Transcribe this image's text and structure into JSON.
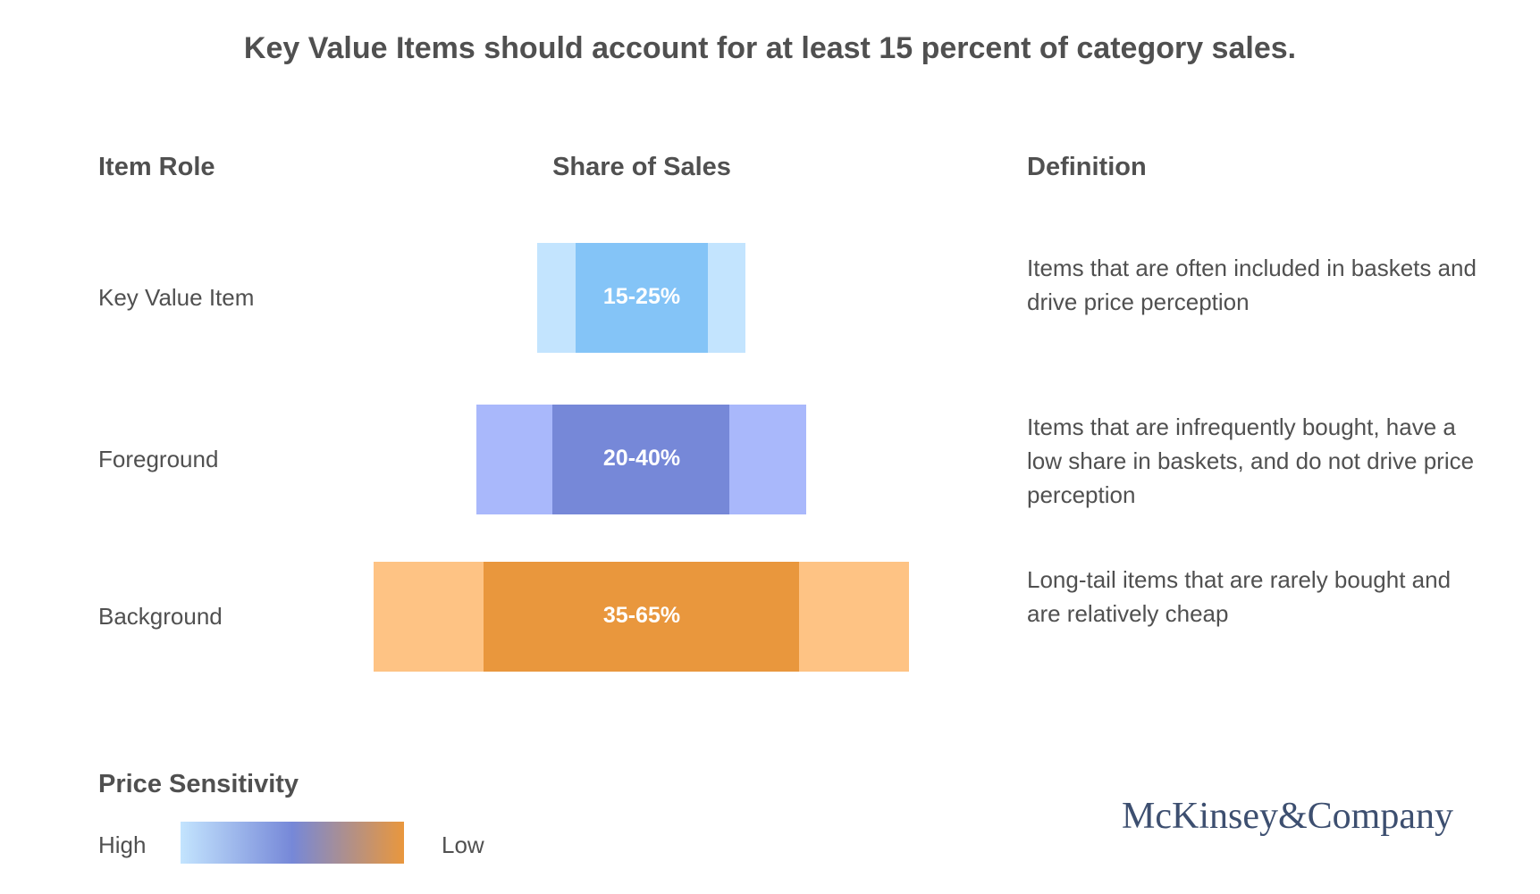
{
  "title": "Key Value Items should account for at least 15 percent of category sales.",
  "columns": [
    "Item Role",
    "Share of Sales",
    "Definition"
  ],
  "rows": [
    {
      "role": "Key Value Item",
      "share": "15-25%",
      "definition": "Items that are often included in baskets and drive price perception",
      "color": "#84c4f7",
      "outer_color": "#c3e4fe"
    },
    {
      "role": "Foreground",
      "share": "20-40%",
      "definition": "Items that are infrequently bought, have a low share in baskets, and do not drive price perception",
      "color": "#7688d8",
      "outer_color": "#a9b8fb"
    },
    {
      "role": "Background",
      "share": "35-65%",
      "definition": "Long-tail items that are rarely bought and are relatively cheap",
      "color": "#e9973d",
      "outer_color": "#fec384"
    }
  ],
  "legend": {
    "title": "Price Sensitivity",
    "high": "High",
    "low": "Low",
    "colors": [
      "#c3e4fe",
      "#7688d8",
      "#e9973d"
    ]
  },
  "logo": "McKinsey&Company"
}
